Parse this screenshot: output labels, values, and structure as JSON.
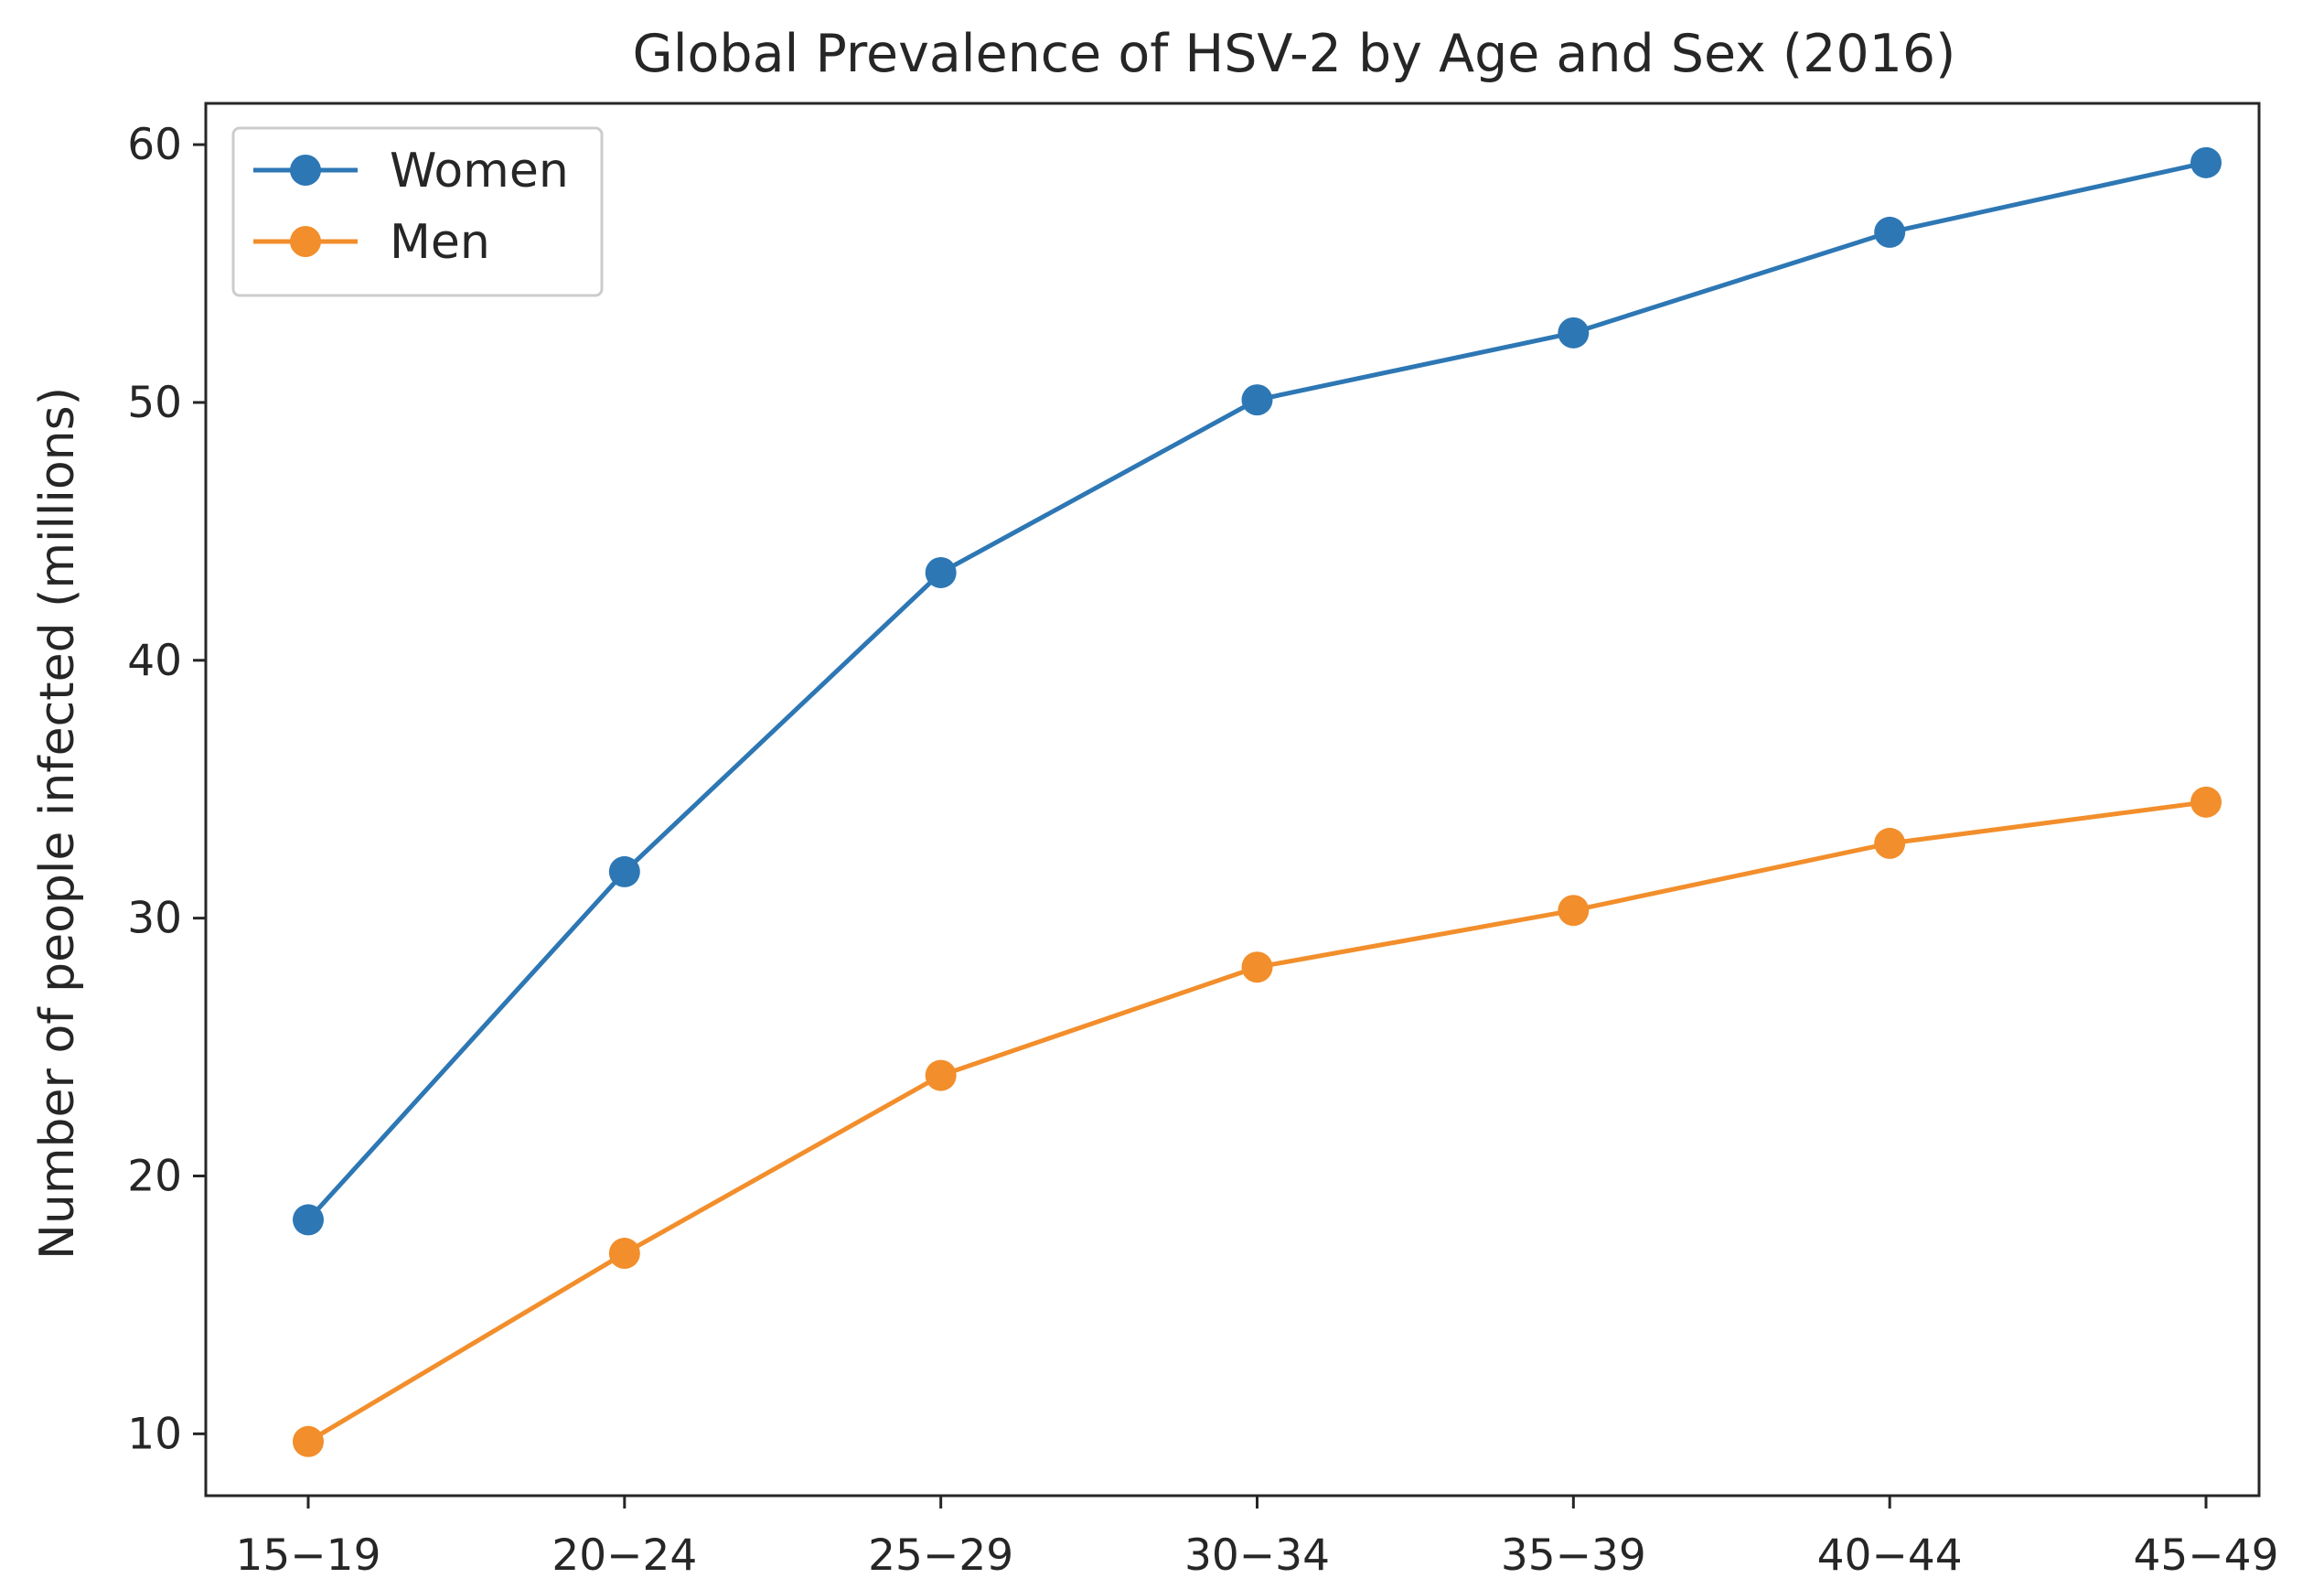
{
  "chart_data": {
    "type": "line",
    "title": "Global Prevalence of HSV-2 by Age and Sex (2016)",
    "xlabel": "",
    "ylabel": "Number of people infected (millions)",
    "categories": [
      "15−19",
      "20−24",
      "25−29",
      "30−34",
      "35−39",
      "40−44",
      "45−49"
    ],
    "y_ticks": [
      10,
      20,
      30,
      40,
      50,
      60
    ],
    "ylim": [
      7.6,
      61.6
    ],
    "grid": false,
    "legend_position": "top-left",
    "series": [
      {
        "name": "Women",
        "color": "#2d77b4",
        "values": [
          18.3,
          31.8,
          43.4,
          50.1,
          52.7,
          56.6,
          59.3
        ]
      },
      {
        "name": "Men",
        "color": "#f28e2b",
        "values": [
          9.7,
          17.0,
          23.9,
          28.1,
          30.3,
          32.9,
          34.5
        ]
      }
    ]
  }
}
